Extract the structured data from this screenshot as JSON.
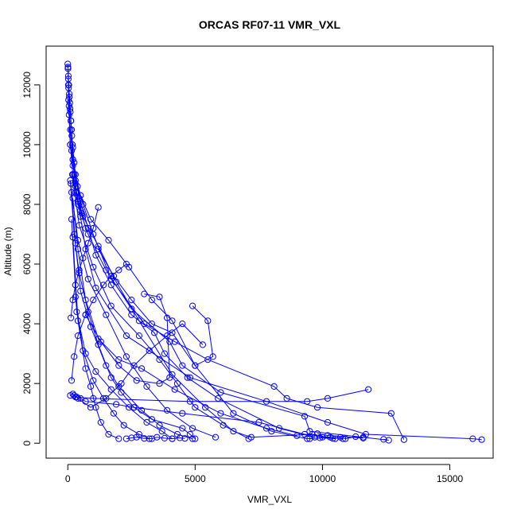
{
  "chart_data": {
    "type": "line",
    "title": "ORCAS RF07-11 VMR_VXL",
    "xlabel": "VMR_VXL",
    "ylabel": "Altitude (m)",
    "xlim": [
      -850,
      16700
    ],
    "ylim": [
      -500,
      13300
    ],
    "xticks": [
      0,
      5000,
      10000,
      15000
    ],
    "xtick_labels": [
      "0",
      "5000",
      "10000",
      "15000"
    ],
    "yticks": [
      0,
      2000,
      4000,
      6000,
      8000,
      10000,
      12000
    ],
    "ytick_labels": [
      "0",
      "2000",
      "4000",
      "6000",
      "8000",
      "10000",
      "12000"
    ],
    "grid": false,
    "legend": "none",
    "color": "#0000ff",
    "marker": "open-circle",
    "series": [
      {
        "x": [
          16250,
          15900,
          11700,
          10200,
          7800,
          4800,
          2300,
          1100,
          700,
          500,
          300,
          200,
          100,
          50,
          20,
          10
        ],
        "y": [
          120,
          150,
          300,
          700,
          1400,
          2200,
          3600,
          5200,
          6500,
          7600,
          8600,
          9500,
          10500,
          11300,
          12000,
          12600
        ]
      },
      {
        "x": [
          12400,
          12600,
          11600,
          9500,
          9300,
          6000,
          4500,
          4000,
          2500,
          1500,
          800,
          400,
          200,
          100,
          50,
          20
        ],
        "y": [
          130,
          100,
          200,
          400,
          900,
          1700,
          2600,
          3400,
          4500,
          5800,
          7000,
          8000,
          9000,
          10000,
          11000,
          12200
        ]
      },
      {
        "x": [
          13200,
          12700,
          9800,
          8600,
          8100,
          5500,
          4200,
          3000,
          1700,
          1000,
          600,
          300,
          100,
          30
        ],
        "y": [
          120,
          1000,
          1200,
          1500,
          1900,
          2800,
          3400,
          4000,
          5500,
          7000,
          8000,
          8800,
          10000,
          11500
        ]
      },
      {
        "x": [
          11800,
          10200,
          9400,
          4800,
          1000,
          300,
          200,
          100
        ],
        "y": [
          1800,
          1500,
          1400,
          1400,
          1500,
          1550,
          1650,
          1600
        ]
      },
      {
        "x": [
          10800,
          9300,
          7500,
          4500,
          2600,
          1900,
          700,
          500,
          350,
          250
        ],
        "y": [
          150,
          300,
          700,
          1000,
          1200,
          1300,
          1400,
          1500,
          1550,
          1600
        ]
      },
      {
        "x": [
          9000,
          7800,
          6000,
          4200,
          2900,
          2000,
          1200,
          700,
          400,
          200
        ],
        "y": [
          250,
          500,
          1000,
          1800,
          2500,
          2800,
          3500,
          4800,
          6500,
          8200
        ]
      },
      {
        "x": [
          10500,
          10000,
          9600,
          7200,
          6500,
          5400,
          4100,
          2800,
          1900,
          1200,
          600,
          300
        ],
        "y": [
          150,
          200,
          300,
          200,
          400,
          1200,
          2300,
          4100,
          5400,
          6600,
          7600,
          8400
        ]
      },
      {
        "x": [
          10300,
          9400,
          8000,
          6500,
          5000,
          4100,
          3300,
          2400,
          1600,
          900,
          500,
          200
        ],
        "y": [
          200,
          150,
          400,
          1000,
          2600,
          4100,
          4800,
          5900,
          6800,
          7500,
          8300,
          9300
        ]
      },
      {
        "x": [
          9700,
          8300,
          5900,
          4700,
          3800,
          3400,
          2500,
          1700,
          1100,
          800,
          500,
          150
        ],
        "y": [
          200,
          500,
          1500,
          2200,
          3000,
          3700,
          4300,
          5300,
          6300,
          7200,
          8100,
          9800
        ]
      },
      {
        "x": [
          5000,
          4800,
          4500,
          3300,
          2600,
          2100,
          1700,
          1200,
          800,
          450,
          250,
          100
        ],
        "y": [
          150,
          300,
          500,
          800,
          1200,
          1700,
          2200,
          3300,
          4400,
          5700,
          7000,
          8800
        ]
      },
      {
        "x": [
          4900,
          4300,
          3600,
          2900,
          2000,
          1500,
          900,
          500,
          300,
          120
        ],
        "y": [
          150,
          300,
          600,
          1100,
          1900,
          2600,
          3900,
          5100,
          6700,
          8700
        ]
      },
      {
        "x": [
          4100,
          3700,
          3100,
          2400,
          1700,
          1100,
          700,
          350,
          150
        ],
        "y": [
          150,
          400,
          700,
          1200,
          1800,
          2400,
          3000,
          4400,
          7500
        ]
      },
      {
        "x": [
          3200,
          2800,
          2200,
          1800,
          1400,
          1000,
          600,
          300
        ],
        "y": [
          150,
          300,
          600,
          1000,
          1500,
          2100,
          3100,
          4900
        ]
      },
      {
        "x": [
          2000,
          1600,
          1300,
          1100,
          900,
          700,
          400,
          200
        ],
        "y": [
          150,
          300,
          700,
          1200,
          1900,
          2500,
          4100,
          6900
        ]
      },
      {
        "x": [
          5800,
          4900,
          3900,
          3100,
          2300,
          1500,
          800,
          400,
          150
        ],
        "y": [
          200,
          500,
          1100,
          1900,
          2900,
          4300,
          5500,
          6800,
          8400
        ]
      },
      {
        "x": [
          7100,
          6100,
          5000,
          4300,
          3600,
          2800,
          1700,
          1000,
          450,
          180
        ],
        "y": [
          150,
          600,
          1200,
          2000,
          2800,
          3600,
          4600,
          5900,
          7300,
          9000
        ]
      },
      {
        "x": [
          5300,
          4500,
          3900,
          3200,
          2600,
          2100,
          1500,
          900,
          400
        ],
        "y": [
          3300,
          4000,
          3600,
          3100,
          2600,
          2000,
          1500,
          1200,
          1500
        ]
      },
      {
        "x": [
          3000,
          3600,
          3900,
          4000,
          3600,
          2700,
          2000,
          1300,
          700
        ],
        "y": [
          5000,
          4900,
          4200,
          2200,
          2000,
          2100,
          2600,
          3400,
          4300
        ]
      },
      {
        "x": [
          4900,
          5500,
          5700,
          5000,
          4100,
          3300,
          2500,
          1800,
          1200
        ],
        "y": [
          4600,
          4100,
          2900,
          2600,
          3700,
          4000,
          4800,
          5600,
          6500
        ]
      },
      {
        "x": [
          2300,
          2000,
          1700,
          1400,
          1000,
          700,
          400,
          250,
          150
        ],
        "y": [
          6000,
          5800,
          5600,
          5300,
          4800,
          4300,
          3600,
          2900,
          2100
        ]
      },
      {
        "x": [
          1200,
          1000,
          800,
          600,
          450,
          300,
          200,
          120
        ],
        "y": [
          7900,
          7200,
          6700,
          6200,
          5800,
          5300,
          4800,
          4200
        ]
      },
      {
        "x": [
          9500,
          9900,
          10400,
          10700,
          10900,
          11300,
          11600,
          10200,
          9800
        ],
        "y": [
          150,
          180,
          160,
          200,
          150,
          220,
          170,
          260,
          320
        ]
      },
      {
        "x": [
          2300,
          2500,
          2700,
          3000,
          3300,
          3500,
          3800,
          4100,
          4400,
          4600
        ],
        "y": [
          150,
          180,
          200,
          160,
          150,
          200,
          170,
          150,
          180,
          160
        ]
      },
      {
        "x": [
          0,
          10,
          20,
          40,
          60,
          80,
          100,
          120,
          150,
          180,
          200,
          250,
          300,
          350,
          400,
          500
        ],
        "y": [
          12700,
          12550,
          12300,
          12000,
          11700,
          11400,
          11100,
          10800,
          10500,
          10000,
          9500,
          9000,
          8700,
          8400,
          8100,
          7800
        ]
      },
      {
        "x": [
          30,
          60,
          90,
          120,
          160,
          200,
          250,
          300,
          380,
          450,
          550,
          700
        ],
        "y": [
          11900,
          11600,
          11200,
          10800,
          10300,
          9900,
          9400,
          9000,
          8600,
          8200,
          7700,
          7200
        ]
      }
    ]
  }
}
